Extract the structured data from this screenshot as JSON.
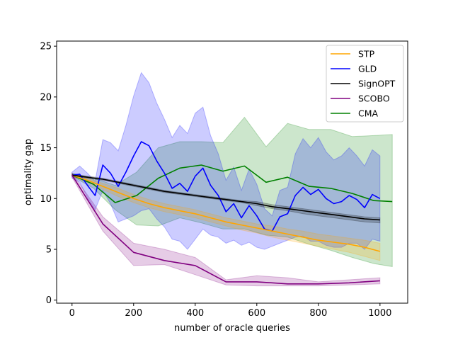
{
  "chart_data": {
    "type": "line",
    "title": "",
    "xlabel": "number of oracle queries",
    "ylabel": "optimality gap",
    "xlim": [
      -50,
      1090
    ],
    "ylim": [
      -0.3,
      25.5
    ],
    "xticks": [
      0,
      200,
      400,
      600,
      800,
      1000
    ],
    "yticks": [
      0,
      5,
      10,
      15,
      20,
      25
    ],
    "grid": false,
    "legend_position": "top-right",
    "series": [
      {
        "name": "STP",
        "color": "#ffa500",
        "x": [
          0,
          50,
          100,
          150,
          200,
          250,
          300,
          350,
          400,
          450,
          500,
          550,
          600,
          650,
          700,
          750,
          800,
          850,
          900,
          950,
          1000
        ],
        "y": [
          12.3,
          11.8,
          11.2,
          10.6,
          10.0,
          9.5,
          9.1,
          8.8,
          8.5,
          8.1,
          7.7,
          7.4,
          7.1,
          6.8,
          6.5,
          6.2,
          5.9,
          5.7,
          5.5,
          5.2,
          4.8
        ],
        "lower": [
          12.2,
          11.6,
          10.9,
          10.2,
          9.6,
          9.1,
          8.7,
          8.4,
          8.1,
          7.7,
          7.3,
          6.9,
          6.6,
          6.2,
          5.9,
          5.6,
          5.3,
          5.0,
          4.7,
          4.3,
          3.9
        ],
        "upper": [
          12.4,
          12.0,
          11.5,
          11.0,
          10.4,
          9.9,
          9.5,
          9.2,
          8.9,
          8.5,
          8.1,
          7.8,
          7.5,
          7.3,
          7.0,
          6.8,
          6.5,
          6.3,
          6.1,
          5.9,
          5.6
        ]
      },
      {
        "name": "GLD",
        "color": "#0000ff",
        "x": [
          0,
          25,
          50,
          75,
          100,
          125,
          150,
          175,
          200,
          225,
          250,
          275,
          300,
          325,
          350,
          375,
          400,
          425,
          450,
          475,
          500,
          525,
          550,
          575,
          600,
          625,
          650,
          675,
          700,
          725,
          750,
          775,
          800,
          825,
          850,
          875,
          900,
          925,
          950,
          975,
          1000
        ],
        "y": [
          12.3,
          12.4,
          11.3,
          10.3,
          13.3,
          12.5,
          11.2,
          12.6,
          14.2,
          15.6,
          15.2,
          13.7,
          12.5,
          11.0,
          11.5,
          10.7,
          12.2,
          13.0,
          11.3,
          10.3,
          8.7,
          9.5,
          8.1,
          9.3,
          8.3,
          7.0,
          6.8,
          8.2,
          8.5,
          10.3,
          11.1,
          10.4,
          10.9,
          10.0,
          9.5,
          9.7,
          10.3,
          9.9,
          9.1,
          10.4,
          10.0
        ],
        "lower": [
          12.0,
          11.6,
          10.1,
          8.9,
          10.8,
          9.5,
          7.7,
          8.0,
          8.3,
          8.8,
          9.0,
          8.0,
          7.2,
          6.0,
          5.8,
          5.0,
          6.0,
          7.0,
          6.4,
          6.2,
          5.6,
          5.9,
          5.4,
          5.7,
          5.2,
          5.0,
          5.3,
          5.6,
          5.9,
          6.2,
          6.3,
          5.8,
          5.8,
          5.4,
          5.2,
          5.2,
          5.6,
          5.6,
          5.0,
          6.0,
          5.8
        ],
        "upper": [
          12.6,
          13.2,
          12.5,
          11.7,
          15.8,
          15.5,
          14.7,
          17.2,
          20.1,
          22.4,
          21.4,
          19.4,
          17.8,
          16.0,
          17.2,
          16.4,
          18.4,
          19.0,
          16.2,
          14.4,
          11.8,
          13.1,
          10.8,
          12.9,
          11.4,
          9.0,
          8.3,
          10.8,
          11.1,
          14.4,
          15.9,
          15.0,
          16.0,
          14.6,
          13.8,
          14.2,
          15.0,
          14.2,
          13.2,
          14.8,
          14.2
        ]
      },
      {
        "name": "SignOPT",
        "color": "#000000",
        "x": [
          0,
          50,
          100,
          150,
          200,
          250,
          300,
          350,
          400,
          450,
          500,
          550,
          600,
          650,
          700,
          750,
          800,
          850,
          900,
          950,
          1000
        ],
        "y": [
          12.3,
          12.1,
          11.9,
          11.6,
          11.3,
          11.0,
          10.7,
          10.5,
          10.3,
          10.1,
          9.9,
          9.7,
          9.5,
          9.2,
          9.0,
          8.8,
          8.6,
          8.4,
          8.2,
          8.0,
          7.9
        ],
        "lower": [
          12.2,
          12.0,
          11.8,
          11.5,
          11.2,
          10.9,
          10.6,
          10.4,
          10.2,
          10.0,
          9.8,
          9.6,
          9.3,
          9.0,
          8.8,
          8.5,
          8.3,
          8.1,
          7.9,
          7.7,
          7.6
        ],
        "upper": [
          12.4,
          12.2,
          12.0,
          11.7,
          11.4,
          11.1,
          10.8,
          10.6,
          10.4,
          10.2,
          10.0,
          9.8,
          9.7,
          9.4,
          9.2,
          9.0,
          8.8,
          8.6,
          8.4,
          8.2,
          8.1
        ]
      },
      {
        "name": "SCOBO",
        "color": "#800080",
        "x": [
          0,
          100,
          200,
          300,
          400,
          500,
          600,
          700,
          800,
          900,
          1000
        ],
        "y": [
          12.3,
          7.5,
          4.7,
          3.9,
          3.4,
          1.8,
          1.8,
          1.6,
          1.6,
          1.7,
          1.9
        ],
        "lower": [
          12.1,
          6.8,
          3.4,
          3.5,
          2.5,
          1.5,
          1.4,
          1.4,
          1.4,
          1.5,
          1.6
        ],
        "upper": [
          12.5,
          8.2,
          5.6,
          5.0,
          4.2,
          2.0,
          2.4,
          2.2,
          1.8,
          2.0,
          2.2
        ]
      },
      {
        "name": "CMA",
        "color": "#008000",
        "x": [
          0,
          70,
          140,
          210,
          280,
          350,
          420,
          490,
          560,
          630,
          700,
          770,
          840,
          910,
          980,
          1040
        ],
        "y": [
          12.3,
          11.4,
          9.6,
          10.3,
          12.0,
          13.0,
          13.3,
          12.7,
          13.2,
          11.6,
          12.1,
          11.2,
          11.0,
          10.5,
          9.8,
          9.7
        ],
        "lower": [
          12.2,
          11.0,
          8.9,
          7.4,
          7.3,
          8.1,
          7.6,
          7.0,
          7.0,
          6.4,
          6.2,
          5.5,
          4.9,
          4.2,
          3.6,
          3.3
        ],
        "upper": [
          12.5,
          12.0,
          11.3,
          12.6,
          15.0,
          15.6,
          15.6,
          15.5,
          18.0,
          15.1,
          17.4,
          16.8,
          16.8,
          16.1,
          16.2,
          16.3
        ]
      }
    ]
  }
}
